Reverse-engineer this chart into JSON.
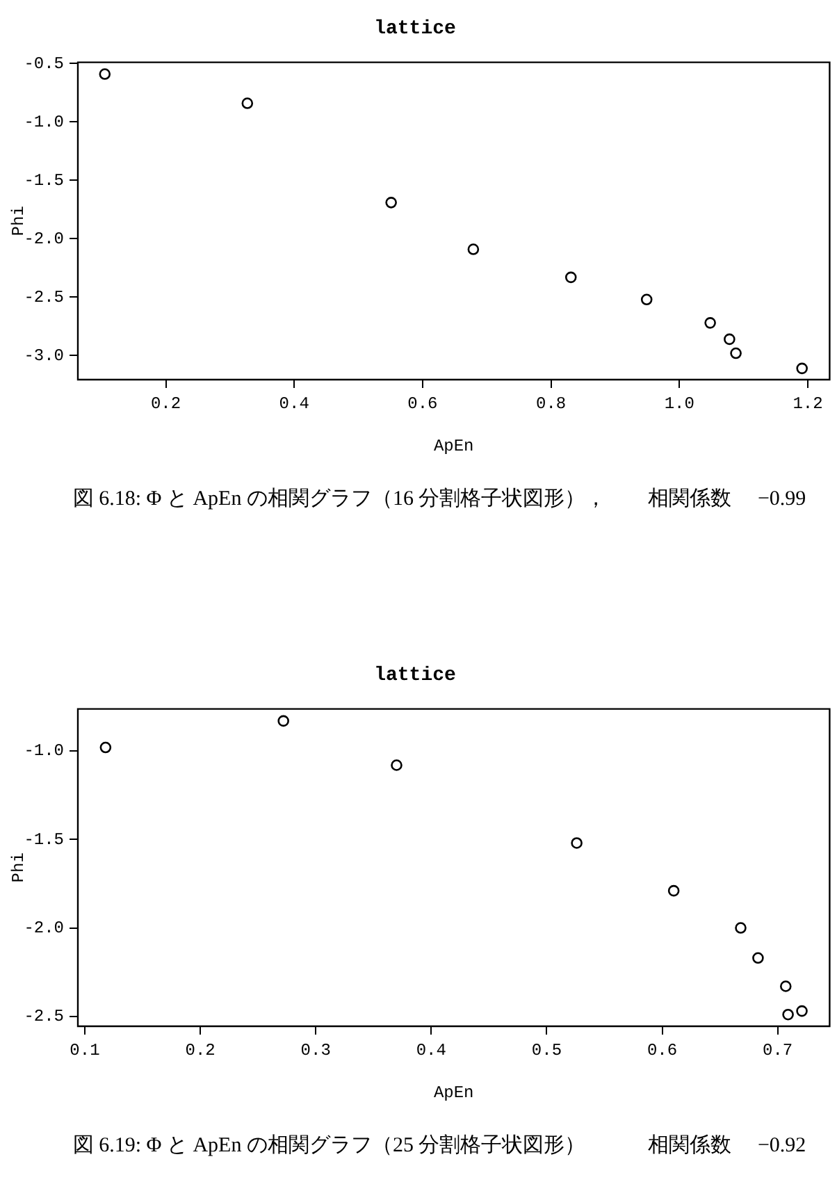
{
  "chart_data": [
    {
      "type": "scatter",
      "title": "lattice",
      "xlabel": "ApEn",
      "ylabel": "Phi",
      "x": [
        0.105,
        0.327,
        0.551,
        0.679,
        0.831,
        0.949,
        1.048,
        1.078,
        1.088,
        1.191
      ],
      "series": [
        {
          "color": "#000000",
          "values": [
            -0.59,
            -0.84,
            -1.69,
            -2.09,
            -2.33,
            -2.52,
            -2.72,
            -2.86,
            -2.98,
            -3.11
          ]
        }
      ],
      "xlim": [
        0.063,
        1.234
      ],
      "ylim": [
        -3.206,
        -0.489
      ],
      "xticks": [
        0.2,
        0.4,
        0.6,
        0.8,
        {
          "value": 1,
          "label": "1.0"
        },
        1.2
      ],
      "yticks": [
        {
          "value": -3,
          "label": "-3.0"
        },
        -2.5,
        {
          "value": -2,
          "label": "-2.0"
        },
        -1.5,
        {
          "value": -1,
          "label": "-1.0"
        },
        -0.5
      ],
      "marker": "circle",
      "grid": false,
      "annotations": [
        "図 6.18: Φ と ApEn の相関グラフ（16 分割格子状図形），　　相関係数　 −0.99"
      ]
    },
    {
      "type": "scatter",
      "title": "lattice",
      "xlabel": "ApEn",
      "ylabel": "Phi",
      "x": [
        0.118,
        0.272,
        0.37,
        0.526,
        0.61,
        0.668,
        0.683,
        0.707,
        0.709,
        0.721
      ],
      "series": [
        {
          "color": "#000000",
          "values": [
            -0.98,
            -0.83,
            -1.08,
            -1.52,
            -1.79,
            -2.0,
            -2.17,
            -2.33,
            -2.49,
            -2.47
          ]
        }
      ],
      "xlim": [
        0.094,
        0.745
      ],
      "ylim": [
        -2.556,
        -0.762
      ],
      "xticks": [
        0.1,
        0.2,
        0.3,
        0.4,
        0.5,
        0.6,
        0.7
      ],
      "yticks": [
        -2.5,
        {
          "value": -2,
          "label": "-2.0"
        },
        -1.5,
        {
          "value": -1,
          "label": "-1.0"
        }
      ],
      "marker": "circle",
      "grid": false,
      "annotations": [
        "図 6.19: Φ と ApEn の相関グラフ（25 分割格子状図形）　　　相関係数　 −0.92"
      ]
    }
  ]
}
